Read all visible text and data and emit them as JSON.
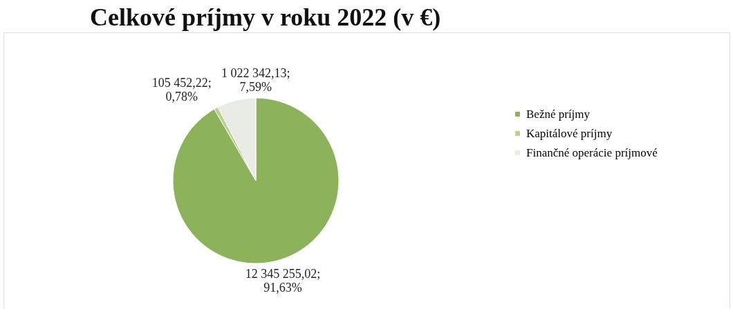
{
  "chart_data": {
    "type": "pie",
    "title": "Celkové príjmy v roku 2022 (v €)",
    "categories": [
      "Bežné príjmy",
      "Kapitálové príjmy",
      "Finančné operácie príjmové"
    ],
    "values": [
      12345255.02,
      105452.22,
      1022342.13
    ],
    "colors": [
      "#8db35a",
      "#b9d38e",
      "#e9ece5"
    ],
    "value_labels": [
      "12 345 255,02; 91,63%",
      "105 452,22; 0,78%",
      "1 022 342,13; 7,59%"
    ],
    "legend": "right"
  }
}
